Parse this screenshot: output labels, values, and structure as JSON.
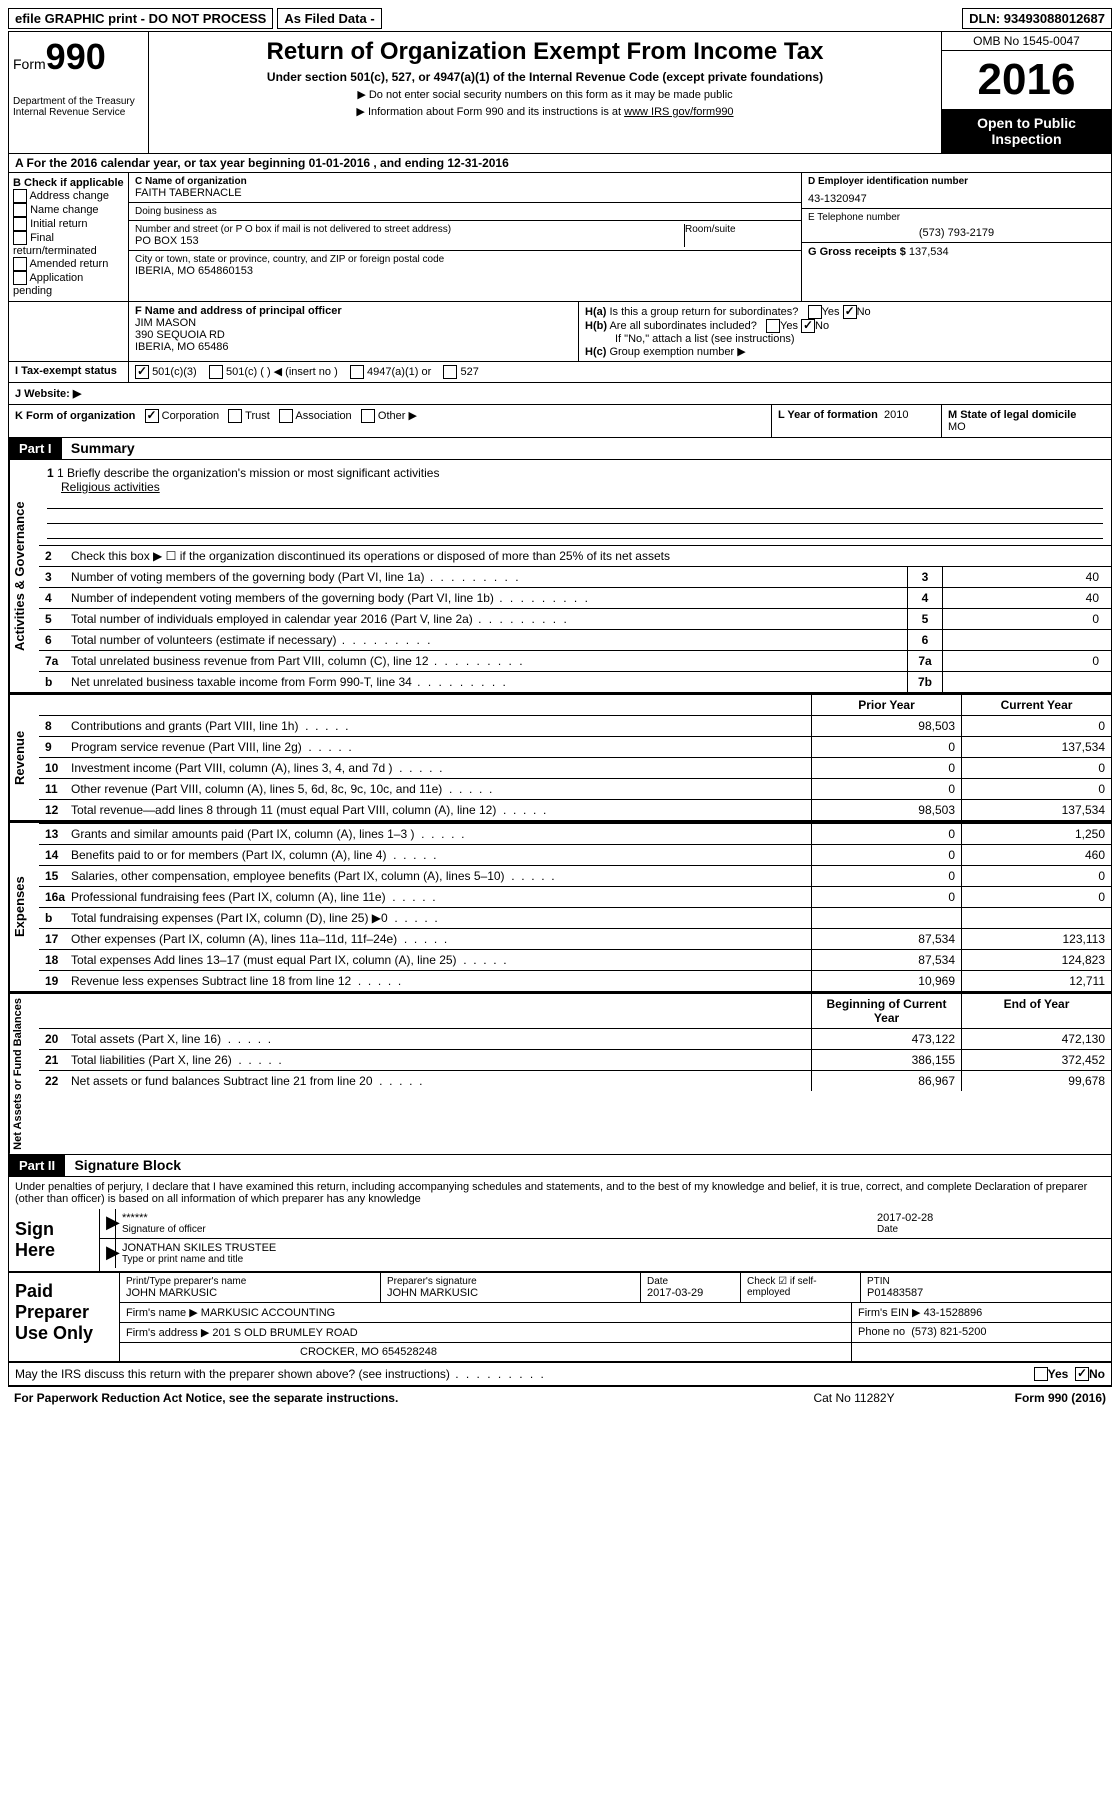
{
  "topbar": {
    "efile": "efile GRAPHIC print - DO NOT PROCESS",
    "asfiled": "As Filed Data -",
    "dln_label": "DLN:",
    "dln": "93493088012687"
  },
  "header": {
    "form_prefix": "Form",
    "form_no": "990",
    "dept1": "Department of the Treasury",
    "dept2": "Internal Revenue Service",
    "title": "Return of Organization Exempt From Income Tax",
    "sub": "Under section 501(c), 527, or 4947(a)(1) of the Internal Revenue Code (except private foundations)",
    "note1": "▶ Do not enter social security numbers on this form as it may be made public",
    "note2_pre": "▶ Information about Form 990 and its instructions is at ",
    "note2_link": "www IRS gov/form990",
    "omb": "OMB No 1545-0047",
    "year": "2016",
    "open1": "Open to Public",
    "open2": "Inspection"
  },
  "rowA": "A  For the 2016 calendar year, or tax year beginning 01-01-2016   , and ending 12-31-2016",
  "B": {
    "title": "B Check if applicable",
    "items": [
      "Address change",
      "Name change",
      "Initial return",
      "Final return/terminated",
      "Amended return",
      "Application pending"
    ]
  },
  "C": {
    "name_lab": "C Name of organization",
    "name": "FAITH TABERNACLE",
    "dba_lab": "Doing business as",
    "dba": "",
    "street_lab": "Number and street (or P O  box if mail is not delivered to street address)",
    "street": "PO BOX 153",
    "room_lab": "Room/suite",
    "city_lab": "City or town, state or province, country, and ZIP or foreign postal code",
    "city": "IBERIA, MO  654860153"
  },
  "D": {
    "lab": "D Employer identification number",
    "val": "43-1320947"
  },
  "E": {
    "lab": "E Telephone number",
    "val": "(573) 793-2179"
  },
  "G": {
    "lab": "G Gross receipts $",
    "val": "137,534"
  },
  "F": {
    "lab": "F  Name and address of principal officer",
    "name": "JIM MASON",
    "street": "390 SEQUOIA RD",
    "city": "IBERIA, MO  65486"
  },
  "H": {
    "a_pre": "H(a)",
    "a_txt": "Is this a group return for subordinates?",
    "b_pre": "H(b)",
    "b_txt": "Are all subordinates included?",
    "b_note": "If \"No,\" attach a list  (see instructions)",
    "c_pre": "H(c)",
    "c_txt": "Group exemption number ▶",
    "yes": "Yes",
    "no": "No",
    "a_yes": false,
    "a_no": true,
    "b_yes": false,
    "b_no": true
  },
  "I": {
    "lab": "I  Tax-exempt status",
    "o1": "501(c)(3)",
    "o1_chk": true,
    "o2": "501(c) (   ) ◀ (insert no )",
    "o3": "4947(a)(1) or",
    "o4": "527"
  },
  "J": {
    "lab": "J  Website: ▶"
  },
  "K": {
    "lab": "K Form of organization",
    "o1": "Corporation",
    "o1_chk": true,
    "o2": "Trust",
    "o3": "Association",
    "o4": "Other ▶"
  },
  "L": {
    "lab": "L Year of formation",
    "val": "2010"
  },
  "M": {
    "lab": "M State of legal domicile",
    "val": "MO"
  },
  "part1": {
    "hdr": "Part I",
    "title": "Summary"
  },
  "summary": {
    "gov_label": "Activities & Governance",
    "rev_label": "Revenue",
    "exp_label": "Expenses",
    "net_label": "Net Assets or Fund Balances",
    "l1_lab": "1 Briefly describe the organization's mission or most significant activities",
    "l1_val": "Religious activities",
    "l2": "Check this box ▶ ☐ if the organization discontinued its operations or disposed of more than 25% of its net assets",
    "l3": "Number of voting members of the governing body (Part VI, line 1a)",
    "l3v": "40",
    "l4": "Number of independent voting members of the governing body (Part VI, line 1b)",
    "l4v": "40",
    "l5": "Total number of individuals employed in calendar year 2016 (Part V, line 2a)",
    "l5v": "0",
    "l6": "Total number of volunteers (estimate if necessary)",
    "l6v": "",
    "l7a": "Total unrelated business revenue from Part VIII, column (C), line 12",
    "l7av": "0",
    "l7b": "Net unrelated business taxable income from Form 990-T, line 34",
    "l7bv": "",
    "hdr_prior": "Prior Year",
    "hdr_curr": "Current Year",
    "rows_rev": [
      {
        "n": "8",
        "t": "Contributions and grants (Part VIII, line 1h)",
        "p": "98,503",
        "c": "0"
      },
      {
        "n": "9",
        "t": "Program service revenue (Part VIII, line 2g)",
        "p": "0",
        "c": "137,534"
      },
      {
        "n": "10",
        "t": "Investment income (Part VIII, column (A), lines 3, 4, and 7d )",
        "p": "0",
        "c": "0"
      },
      {
        "n": "11",
        "t": "Other revenue (Part VIII, column (A), lines 5, 6d, 8c, 9c, 10c, and 11e)",
        "p": "0",
        "c": "0"
      },
      {
        "n": "12",
        "t": "Total revenue—add lines 8 through 11 (must equal Part VIII, column (A), line 12)",
        "p": "98,503",
        "c": "137,534"
      }
    ],
    "rows_exp": [
      {
        "n": "13",
        "t": "Grants and similar amounts paid (Part IX, column (A), lines 1–3 )",
        "p": "0",
        "c": "1,250"
      },
      {
        "n": "14",
        "t": "Benefits paid to or for members (Part IX, column (A), line 4)",
        "p": "0",
        "c": "460"
      },
      {
        "n": "15",
        "t": "Salaries, other compensation, employee benefits (Part IX, column (A), lines 5–10)",
        "p": "0",
        "c": "0"
      },
      {
        "n": "16a",
        "t": "Professional fundraising fees (Part IX, column (A), line 11e)",
        "p": "0",
        "c": "0"
      },
      {
        "n": "b",
        "t": "Total fundraising expenses (Part IX, column (D), line 25) ▶0",
        "p": "",
        "c": ""
      },
      {
        "n": "17",
        "t": "Other expenses (Part IX, column (A), lines 11a–11d, 11f–24e)",
        "p": "87,534",
        "c": "123,113"
      },
      {
        "n": "18",
        "t": "Total expenses  Add lines 13–17 (must equal Part IX, column (A), line 25)",
        "p": "87,534",
        "c": "124,823"
      },
      {
        "n": "19",
        "t": "Revenue less expenses  Subtract line 18 from line 12",
        "p": "10,969",
        "c": "12,711"
      }
    ],
    "hdr_beg": "Beginning of Current Year",
    "hdr_end": "End of Year",
    "rows_net": [
      {
        "n": "20",
        "t": "Total assets (Part X, line 16)",
        "p": "473,122",
        "c": "472,130"
      },
      {
        "n": "21",
        "t": "Total liabilities (Part X, line 26)",
        "p": "386,155",
        "c": "372,452"
      },
      {
        "n": "22",
        "t": "Net assets or fund balances  Subtract line 21 from line 20",
        "p": "86,967",
        "c": "99,678"
      }
    ]
  },
  "part2": {
    "hdr": "Part II",
    "title": "Signature Block"
  },
  "sig": {
    "decl": "Under penalties of perjury, I declare that I have examined this return, including accompanying schedules and statements, and to the best of my knowledge and belief, it is true, correct, and complete  Declaration of preparer (other than officer) is based on all information of which preparer has any knowledge",
    "sign_here": "Sign Here",
    "stars": "******",
    "sig_lab": "Signature of officer",
    "date": "2017-02-28",
    "date_lab": "Date",
    "name": "JONATHAN SKILES  TRUSTEE",
    "name_lab": "Type or print name and title"
  },
  "prep": {
    "title": "Paid Preparer Use Only",
    "col1_lab": "Print/Type preparer's name",
    "col1": "JOHN MARKUSIC",
    "col2_lab": "Preparer's signature",
    "col2": "JOHN MARKUSIC",
    "col3_lab": "Date",
    "col3": "2017-03-29",
    "col4_lab": "Check ☑ if self-employed",
    "col5_lab": "PTIN",
    "col5": "P01483587",
    "firm_lab": "Firm's name    ▶",
    "firm": "MARKUSIC ACCOUNTING",
    "ein_lab": "Firm's EIN ▶",
    "ein": "43-1528896",
    "addr_lab": "Firm's address ▶",
    "addr1": "201 S OLD BRUMLEY ROAD",
    "addr2": "CROCKER, MO  654528248",
    "phone_lab": "Phone no",
    "phone": "(573) 821-5200"
  },
  "footer": {
    "discuss": "May the IRS discuss this return with the preparer shown above? (see instructions)",
    "yes": "Yes",
    "no": "No",
    "paperwork": "For Paperwork Reduction Act Notice, see the separate instructions.",
    "cat": "Cat  No  11282Y",
    "form": "Form 990 (2016)"
  }
}
